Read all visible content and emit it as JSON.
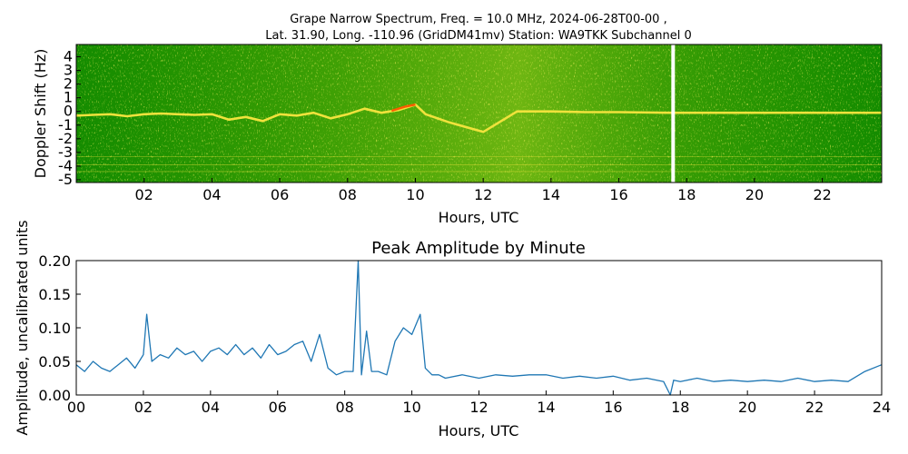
{
  "chart_data": [
    {
      "type": "heatmap",
      "title_line1": "Grape Narrow Spectrum, Freq. = 10.0 MHz, 2024-06-28T00-00 ,",
      "title_line2": "Lat.  31.90, Long. -110.96 (GridDM41mv) Station: WA9TKK Subchannel 0",
      "xlabel": "Hours, UTC",
      "ylabel": "Doppler Shift (Hz)",
      "xlim": [
        0,
        23.75
      ],
      "ylim": [
        -5.2,
        4.9
      ],
      "x_tick_values": [
        2,
        4,
        6,
        8,
        10,
        12,
        14,
        16,
        18,
        20,
        22
      ],
      "x_tick_labels": [
        "02",
        "04",
        "06",
        "08",
        "10",
        "12",
        "14",
        "16",
        "18",
        "20",
        "22"
      ],
      "y_tick_values": [
        4,
        3,
        2,
        1,
        0,
        -1,
        -2,
        -3,
        -4,
        -5
      ],
      "y_tick_labels": [
        "4",
        "3",
        "2",
        "1",
        "0",
        "-1",
        "-2",
        "-3",
        "-4",
        "-5"
      ],
      "colors": {
        "background": "#148c00",
        "signal": "#f0e23c",
        "peak": "#ff5a00",
        "gap": "#ffffff"
      },
      "data_gap_hours": 17.6,
      "dominant_trace": [
        [
          0.0,
          -0.3
        ],
        [
          0.5,
          -0.25
        ],
        [
          1.0,
          -0.2
        ],
        [
          1.5,
          -0.35
        ],
        [
          2.0,
          -0.2
        ],
        [
          2.5,
          -0.15
        ],
        [
          3.0,
          -0.2
        ],
        [
          3.5,
          -0.25
        ],
        [
          4.0,
          -0.2
        ],
        [
          4.5,
          -0.6
        ],
        [
          5.0,
          -0.4
        ],
        [
          5.5,
          -0.7
        ],
        [
          6.0,
          -0.2
        ],
        [
          6.5,
          -0.3
        ],
        [
          7.0,
          -0.1
        ],
        [
          7.5,
          -0.5
        ],
        [
          8.0,
          -0.2
        ],
        [
          8.5,
          0.2
        ],
        [
          9.0,
          -0.1
        ],
        [
          9.5,
          0.1
        ],
        [
          10.0,
          0.5
        ],
        [
          10.3,
          -0.2
        ],
        [
          11.0,
          -0.8
        ],
        [
          12.0,
          -1.5
        ],
        [
          13.0,
          0.0
        ],
        [
          14.0,
          0.0
        ],
        [
          15.0,
          -0.05
        ],
        [
          16.0,
          -0.05
        ],
        [
          17.5,
          -0.1
        ],
        [
          18.0,
          -0.1
        ],
        [
          20.0,
          -0.1
        ],
        [
          22.0,
          -0.1
        ],
        [
          23.75,
          -0.1
        ]
      ]
    },
    {
      "type": "line",
      "title": "Peak Amplitude by Minute",
      "xlabel": "Hours, UTC",
      "ylabel": "Amplitude, uncalibrated units",
      "xlim": [
        0,
        24
      ],
      "ylim": [
        0,
        0.2
      ],
      "x_tick_values": [
        0,
        2,
        4,
        6,
        8,
        10,
        12,
        14,
        16,
        18,
        20,
        22,
        24
      ],
      "x_tick_labels": [
        "00",
        "02",
        "04",
        "06",
        "08",
        "10",
        "12",
        "14",
        "16",
        "18",
        "20",
        "22",
        "24"
      ],
      "y_tick_values": [
        0.0,
        0.05,
        0.1,
        0.15,
        0.2
      ],
      "y_tick_labels": [
        "0.00",
        "0.05",
        "0.10",
        "0.15",
        "0.20"
      ],
      "color": "#1f77b4",
      "x": [
        0.0,
        0.25,
        0.5,
        0.75,
        1.0,
        1.25,
        1.5,
        1.75,
        2.0,
        2.1,
        2.25,
        2.5,
        2.75,
        3.0,
        3.25,
        3.5,
        3.75,
        4.0,
        4.25,
        4.5,
        4.75,
        5.0,
        5.25,
        5.5,
        5.75,
        6.0,
        6.25,
        6.5,
        6.75,
        7.0,
        7.25,
        7.5,
        7.75,
        8.0,
        8.25,
        8.4,
        8.5,
        8.65,
        8.8,
        9.0,
        9.25,
        9.5,
        9.75,
        10.0,
        10.25,
        10.4,
        10.6,
        10.8,
        11.0,
        11.5,
        12.0,
        12.5,
        13.0,
        13.5,
        14.0,
        14.5,
        15.0,
        15.5,
        16.0,
        16.5,
        17.0,
        17.5,
        17.7,
        17.8,
        18.0,
        18.5,
        19.0,
        19.5,
        20.0,
        20.5,
        21.0,
        21.5,
        22.0,
        22.5,
        23.0,
        23.5,
        24.0
      ],
      "y": [
        0.045,
        0.035,
        0.05,
        0.04,
        0.035,
        0.045,
        0.055,
        0.04,
        0.06,
        0.12,
        0.05,
        0.06,
        0.055,
        0.07,
        0.06,
        0.065,
        0.05,
        0.065,
        0.07,
        0.06,
        0.075,
        0.06,
        0.07,
        0.055,
        0.075,
        0.06,
        0.065,
        0.075,
        0.08,
        0.05,
        0.09,
        0.04,
        0.03,
        0.035,
        0.035,
        0.2,
        0.03,
        0.095,
        0.035,
        0.035,
        0.03,
        0.08,
        0.1,
        0.09,
        0.12,
        0.04,
        0.03,
        0.03,
        0.025,
        0.03,
        0.025,
        0.03,
        0.028,
        0.03,
        0.03,
        0.025,
        0.028,
        0.025,
        0.028,
        0.022,
        0.025,
        0.02,
        0.0,
        0.022,
        0.02,
        0.025,
        0.02,
        0.022,
        0.02,
        0.022,
        0.02,
        0.025,
        0.02,
        0.022,
        0.02,
        0.035,
        0.045
      ]
    }
  ]
}
